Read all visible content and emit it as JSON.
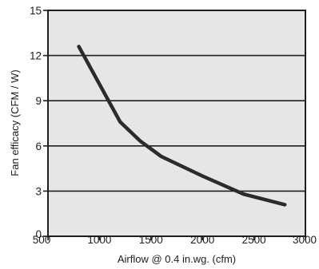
{
  "chart_data": {
    "type": "line",
    "title": "",
    "xlabel": "Airflow @ 0.4 in.wg. (cfm)",
    "ylabel": "Fan efficacy (CFM / W)",
    "xlim": [
      500,
      3000
    ],
    "ylim": [
      0,
      15
    ],
    "x_ticks": [
      500,
      1000,
      1500,
      2000,
      2500,
      3000
    ],
    "y_ticks": [
      0,
      3,
      6,
      9,
      12,
      15
    ],
    "x_tick_labels": [
      "500",
      "1000",
      "1500",
      "2000",
      "2500",
      "3000"
    ],
    "y_tick_labels": [
      "0",
      "3",
      "6",
      "9",
      "12",
      "15"
    ],
    "grid": "horizontal",
    "legend": "none",
    "background_color": "#e6e6e6",
    "line_color": "#2b2b2b",
    "series": [
      {
        "x": [
          800,
          1000,
          1200,
          1400,
          1600,
          2000,
          2400,
          2800
        ],
        "y": [
          12.6,
          10.1,
          7.6,
          6.3,
          5.3,
          4.0,
          2.8,
          2.1
        ]
      }
    ]
  }
}
